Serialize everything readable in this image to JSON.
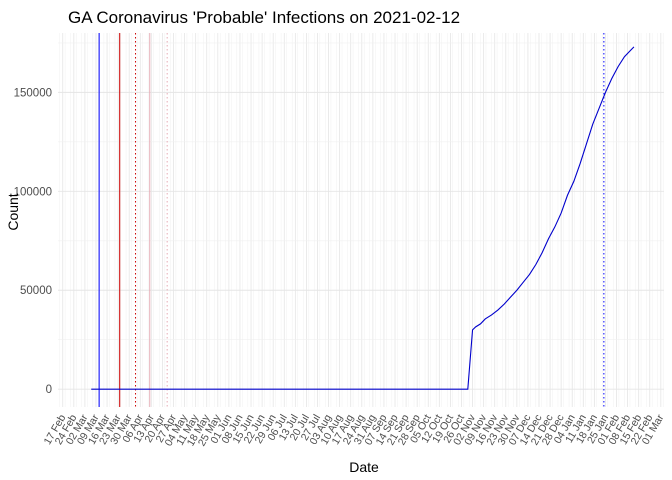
{
  "chart_data": {
    "type": "line",
    "title": "GA Coronavirus 'Probable' Infections on 2021-02-12",
    "xlabel": "Date",
    "ylabel": "Count",
    "xlim": [
      "2020-02-14",
      "2021-03-03"
    ],
    "ylim": [
      -9000,
      180000
    ],
    "yticks": [
      0,
      50000,
      100000,
      150000
    ],
    "ytick_labels": [
      "0",
      "50000",
      "100000",
      "150000"
    ],
    "grid": true,
    "xtick_dates": [
      "2020-02-17",
      "2020-02-24",
      "2020-03-02",
      "2020-03-09",
      "2020-03-16",
      "2020-03-23",
      "2020-03-30",
      "2020-04-06",
      "2020-04-13",
      "2020-04-20",
      "2020-04-27",
      "2020-05-04",
      "2020-05-11",
      "2020-05-18",
      "2020-05-25",
      "2020-06-01",
      "2020-06-08",
      "2020-06-15",
      "2020-06-22",
      "2020-06-29",
      "2020-07-06",
      "2020-07-13",
      "2020-07-20",
      "2020-07-27",
      "2020-08-03",
      "2020-08-10",
      "2020-08-17",
      "2020-08-24",
      "2020-08-31",
      "2020-09-07",
      "2020-09-14",
      "2020-09-21",
      "2020-09-28",
      "2020-10-05",
      "2020-10-12",
      "2020-10-19",
      "2020-10-26",
      "2020-11-02",
      "2020-11-09",
      "2020-11-16",
      "2020-11-23",
      "2020-11-30",
      "2020-12-07",
      "2020-12-14",
      "2020-12-21",
      "2020-12-28",
      "2021-01-04",
      "2021-01-11",
      "2021-01-18",
      "2021-01-25",
      "2021-02-01",
      "2021-02-08",
      "2021-02-15",
      "2021-02-22",
      "2021-03-01"
    ],
    "xtick_labels": [
      "17 Feb",
      "24 Feb",
      "02 Mar",
      "09 Mar",
      "16 Mar",
      "23 Mar",
      "30 Mar",
      "06 Apr",
      "13 Apr",
      "20 Apr",
      "27 Apr",
      "04 May",
      "11 May",
      "18 May",
      "25 May",
      "01 Jun",
      "08 Jun",
      "15 Jun",
      "22 Jun",
      "29 Jun",
      "06 Jul",
      "13 Jul",
      "20 Jul",
      "27 Jul",
      "03 Aug",
      "10 Aug",
      "17 Aug",
      "24 Aug",
      "31 Aug",
      "07 Sep",
      "14 Sep",
      "21 Sep",
      "28 Sep",
      "05 Oct",
      "12 Oct",
      "19 Oct",
      "26 Oct",
      "02 Nov",
      "09 Nov",
      "16 Nov",
      "23 Nov",
      "30 Nov",
      "07 Dec",
      "14 Dec",
      "21 Dec",
      "28 Dec",
      "04 Jan",
      "11 Jan",
      "18 Jan",
      "25 Jan",
      "01 Feb",
      "08 Feb",
      "15 Feb",
      "22 Feb",
      "01 Mar"
    ],
    "vlines": [
      {
        "date": "2020-03-11",
        "color": "#0000ff",
        "style": "solid"
      },
      {
        "date": "2020-03-24",
        "color": "#cc0000",
        "style": "solid"
      },
      {
        "date": "2020-04-03",
        "color": "#cc0000",
        "style": "dotted"
      },
      {
        "date": "2020-04-12",
        "color": "#e6aab4",
        "style": "solid"
      },
      {
        "date": "2020-04-23",
        "color": "#e6aab4",
        "style": "dotted"
      },
      {
        "date": "2021-01-24",
        "color": "#0000ff",
        "style": "dotted"
      }
    ],
    "series": [
      {
        "color": "#0000cc",
        "x": [
          "2020-03-06",
          "2020-10-30",
          "2020-11-01",
          "2020-11-02",
          "2020-11-04",
          "2020-11-07",
          "2020-11-10",
          "2020-11-14",
          "2020-11-18",
          "2020-11-22",
          "2020-11-26",
          "2020-11-30",
          "2020-12-04",
          "2020-12-08",
          "2020-12-12",
          "2020-12-16",
          "2020-12-20",
          "2020-12-24",
          "2020-12-28",
          "2021-01-01",
          "2021-01-05",
          "2021-01-09",
          "2021-01-13",
          "2021-01-17",
          "2021-01-21",
          "2021-01-25",
          "2021-01-29",
          "2021-02-02",
          "2021-02-06",
          "2021-02-09",
          "2021-02-12"
        ],
        "y": [
          0,
          0,
          20000,
          30000,
          31500,
          33000,
          35500,
          37500,
          40000,
          43000,
          46500,
          50000,
          54000,
          58000,
          63000,
          69000,
          76000,
          82000,
          89000,
          98000,
          105000,
          114000,
          124000,
          134000,
          142000,
          150000,
          157000,
          163000,
          168000,
          170500,
          173000
        ]
      }
    ]
  }
}
